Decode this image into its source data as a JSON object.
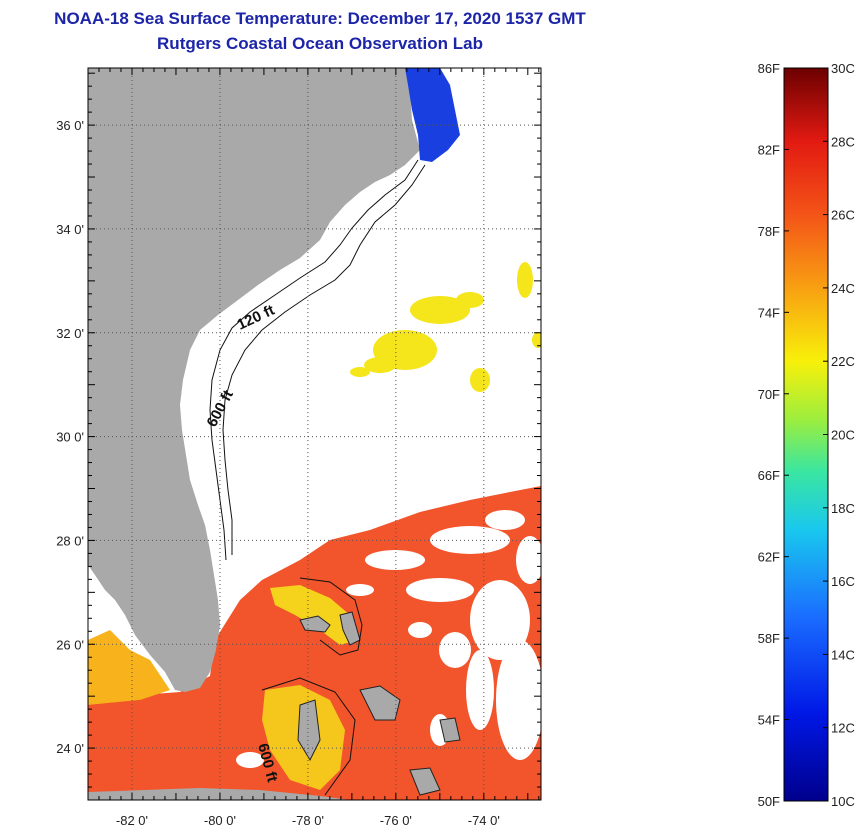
{
  "header": {
    "title": "NOAA-18 Sea Surface Temperature:  December 17, 2020 1537 GMT",
    "subtitle": "Rutgers Coastal Ocean Observation Lab"
  },
  "map": {
    "lat_min": 23,
    "lat_max": 37.1,
    "lon_min": -83,
    "lon_max": -72.7,
    "lat_ticks": [
      {
        "value": 36,
        "label": "36 0'"
      },
      {
        "value": 34,
        "label": "34 0'"
      },
      {
        "value": 32,
        "label": "32 0'"
      },
      {
        "value": 30,
        "label": "30 0'"
      },
      {
        "value": 28,
        "label": "28 0'"
      },
      {
        "value": 26,
        "label": "26 0'"
      },
      {
        "value": 24,
        "label": "24 0'"
      }
    ],
    "lon_ticks": [
      {
        "value": -82,
        "label": "-82 0'"
      },
      {
        "value": -80,
        "label": "-80 0'"
      },
      {
        "value": -78,
        "label": "-78 0'"
      },
      {
        "value": -76,
        "label": "-76 0'"
      },
      {
        "value": -74,
        "label": "-74 0'"
      }
    ],
    "contour_labels": {
      "c120": "120 ft",
      "c600a": "600 ft",
      "c600b": "600 ft"
    },
    "colors": {
      "land": "#a9a9a9",
      "cloud": "#ffffff",
      "warm": "#f2542b",
      "mid": "#f7b21c",
      "cool": "#f5e51b",
      "cold": "#1a3fe0"
    }
  },
  "colorbar": {
    "min_c": 10,
    "max_c": 30,
    "f_labels": [
      {
        "value": 86,
        "label": "86F"
      },
      {
        "value": 82,
        "label": "82F"
      },
      {
        "value": 78,
        "label": "78F"
      },
      {
        "value": 74,
        "label": "74F"
      },
      {
        "value": 70,
        "label": "70F"
      },
      {
        "value": 66,
        "label": "66F"
      },
      {
        "value": 62,
        "label": "62F"
      },
      {
        "value": 58,
        "label": "58F"
      },
      {
        "value": 54,
        "label": "54F"
      },
      {
        "value": 50,
        "label": "50F"
      }
    ],
    "c_labels": [
      {
        "value": 30,
        "label": "30C"
      },
      {
        "value": 28,
        "label": "28C"
      },
      {
        "value": 26,
        "label": "26C"
      },
      {
        "value": 24,
        "label": "24C"
      },
      {
        "value": 22,
        "label": "22C"
      },
      {
        "value": 20,
        "label": "20C"
      },
      {
        "value": 18,
        "label": "18C"
      },
      {
        "value": 16,
        "label": "16C"
      },
      {
        "value": 14,
        "label": "14C"
      },
      {
        "value": 12,
        "label": "12C"
      },
      {
        "value": 10,
        "label": "10C"
      }
    ]
  }
}
